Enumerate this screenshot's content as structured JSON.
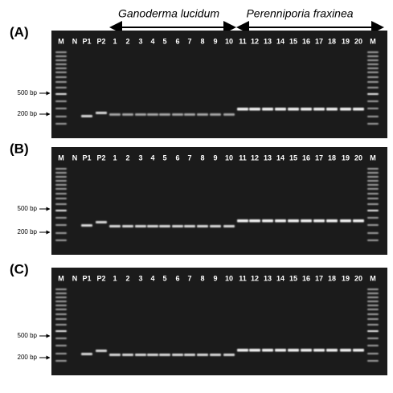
{
  "header": {
    "groups": [
      {
        "label": "Ganoderma lucidum"
      },
      {
        "label": "Perenniporia fraxinea"
      }
    ]
  },
  "lanes": [
    "M",
    "N",
    "P1",
    "P2",
    "1",
    "2",
    "3",
    "4",
    "5",
    "6",
    "7",
    "8",
    "9",
    "10",
    "11",
    "12",
    "13",
    "14",
    "15",
    "16",
    "17",
    "18",
    "19",
    "20",
    "M"
  ],
  "size_markers": [
    "500 bp",
    "200 bp"
  ],
  "panels": [
    {
      "label": "(A)"
    },
    {
      "label": "(B)"
    },
    {
      "label": "(C)"
    }
  ]
}
